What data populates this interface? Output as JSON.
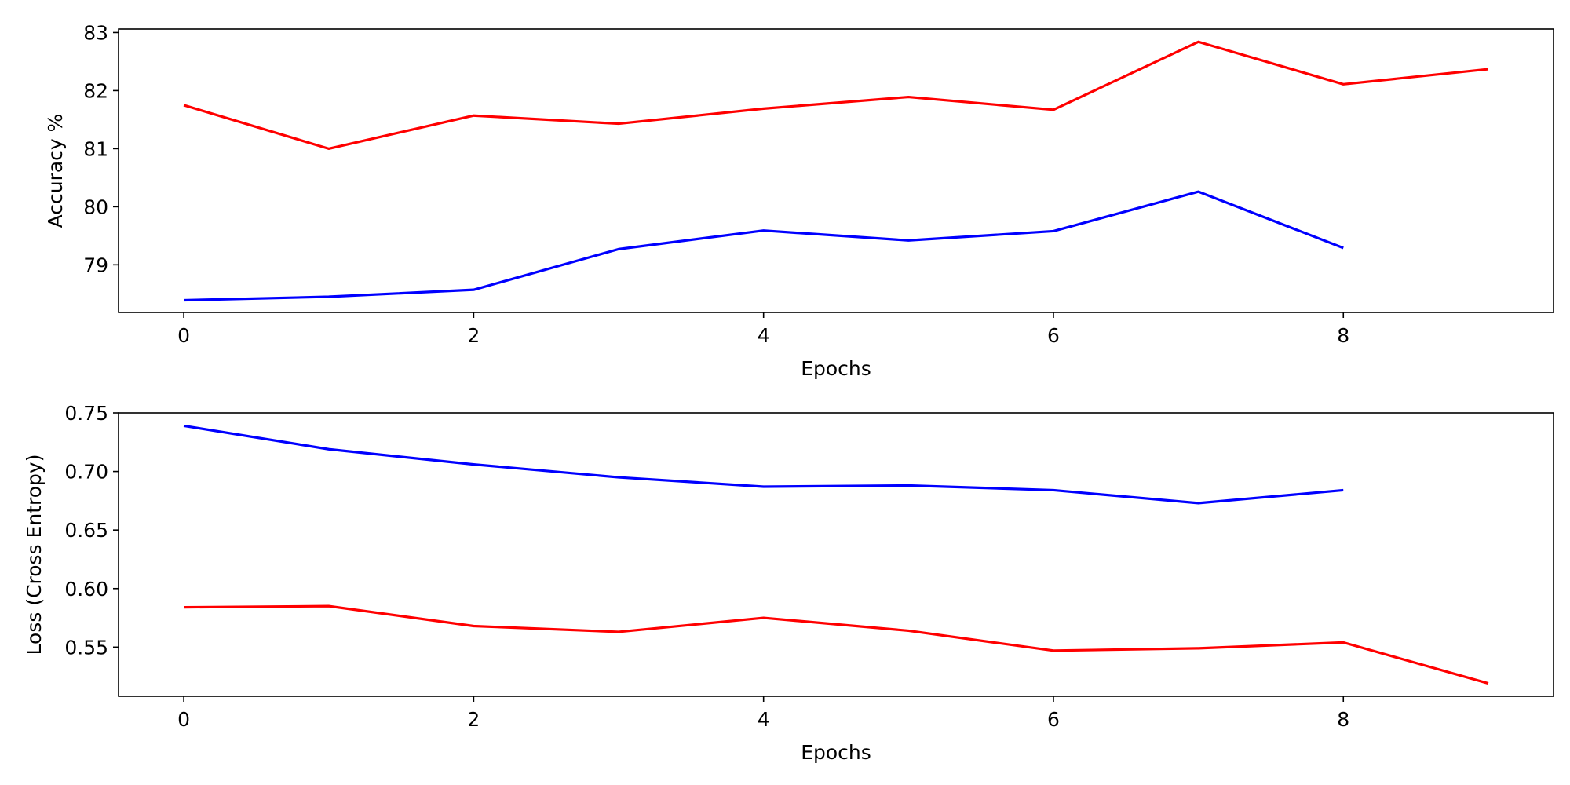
{
  "chart_data": [
    {
      "type": "line",
      "xlabel": "Epochs",
      "ylabel": "Accuracy %",
      "xlim": [
        -0.45,
        9.45
      ],
      "ylim": [
        78.18,
        83.06
      ],
      "xticks": [
        0,
        2,
        4,
        6,
        8
      ],
      "yticks": [
        79,
        80,
        81,
        82,
        83
      ],
      "ytick_labels": [
        "79",
        "80",
        "81",
        "82",
        "83"
      ],
      "grid": false,
      "series": [
        {
          "color": "#ff0000",
          "x": [
            0,
            1,
            2,
            3,
            4,
            5,
            6,
            7,
            8,
            9
          ],
          "y": [
            81.75,
            81.0,
            81.57,
            81.43,
            81.69,
            81.89,
            81.67,
            82.84,
            82.11,
            82.37
          ]
        },
        {
          "color": "#0000ff",
          "x": [
            0,
            1,
            2,
            3,
            4,
            5,
            6,
            7,
            8
          ],
          "y": [
            78.39,
            78.45,
            78.57,
            79.27,
            79.59,
            79.42,
            79.58,
            80.26,
            79.29
          ]
        }
      ]
    },
    {
      "type": "line",
      "xlabel": "Epochs",
      "ylabel": "Loss (Cross Entropy)",
      "xlim": [
        -0.45,
        9.45
      ],
      "ylim": [
        0.508,
        0.75
      ],
      "xticks": [
        0,
        2,
        4,
        6,
        8
      ],
      "yticks": [
        0.55,
        0.6,
        0.65,
        0.7,
        0.75
      ],
      "ytick_labels": [
        "0.55",
        "0.60",
        "0.65",
        "0.70",
        "0.75"
      ],
      "grid": false,
      "series": [
        {
          "color": "#0000ff",
          "x": [
            0,
            1,
            2,
            3,
            4,
            5,
            6,
            7,
            8
          ],
          "y": [
            0.739,
            0.719,
            0.706,
            0.695,
            0.687,
            0.688,
            0.684,
            0.673,
            0.684
          ]
        },
        {
          "color": "#ff0000",
          "x": [
            0,
            1,
            2,
            3,
            4,
            5,
            6,
            7,
            8,
            9
          ],
          "y": [
            0.584,
            0.585,
            0.568,
            0.563,
            0.575,
            0.564,
            0.547,
            0.549,
            0.554,
            0.519
          ]
        }
      ]
    }
  ]
}
